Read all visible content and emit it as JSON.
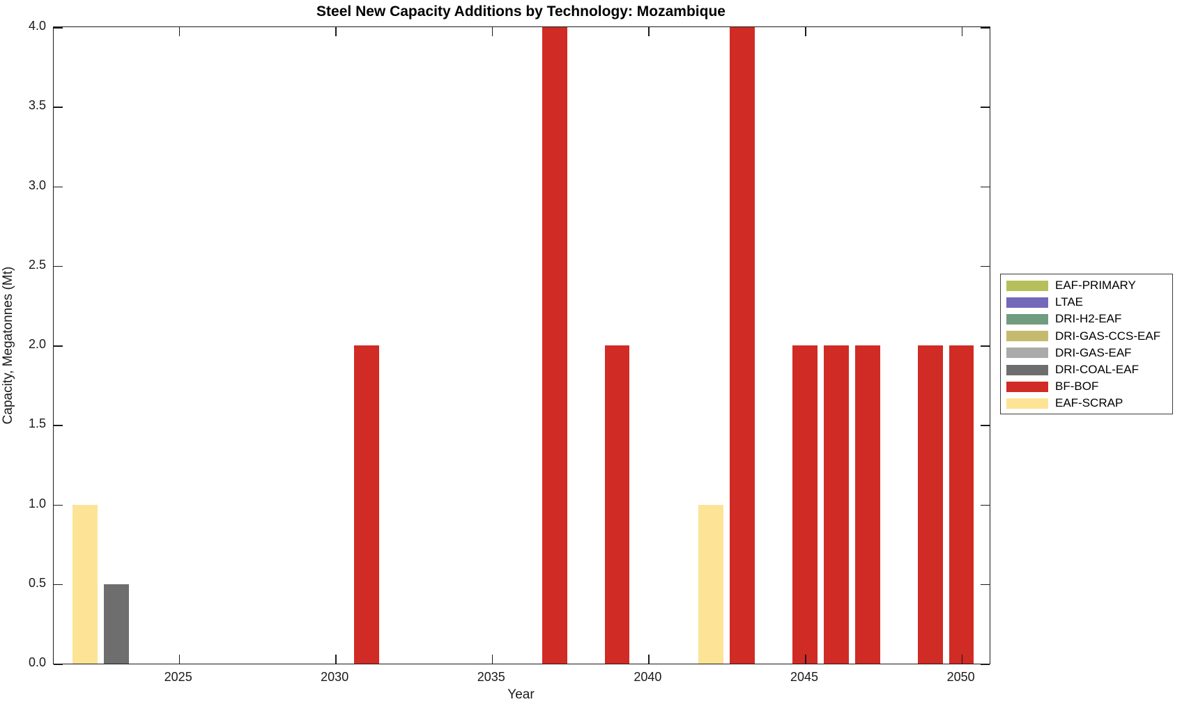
{
  "title": "Steel New Capacity Additions by Technology: Mozambique",
  "chart_data": {
    "type": "bar",
    "title": "Steel New Capacity Additions by Technology: Mozambique",
    "xlabel": "Year",
    "ylabel": "Capacity, Megatonnes (Mt)",
    "xlim": [
      2021.0,
      2050.9
    ],
    "ylim": [
      0,
      4
    ],
    "grid": false,
    "legend_position": "outside-right",
    "xticks": [
      2025,
      2030,
      2035,
      2040,
      2045,
      2050
    ],
    "yticks": [
      0,
      0.5,
      1.0,
      1.5,
      2.0,
      2.5,
      3.0,
      3.5,
      4.0
    ],
    "ytick_labels": [
      "0.0",
      "0.5",
      "1.0",
      "1.5",
      "2.0",
      "2.5",
      "3.0",
      "3.5",
      "4.0"
    ],
    "bar_width_years": 0.8,
    "legend": [
      {
        "name": "EAF-PRIMARY",
        "color": "#b5c05c"
      },
      {
        "name": "LTAE",
        "color": "#7468bb"
      },
      {
        "name": "DRI-H2-EAF",
        "color": "#709c80"
      },
      {
        "name": "DRI-GAS-CCS-EAF",
        "color": "#c5b96e"
      },
      {
        "name": "DRI-GAS-EAF",
        "color": "#aaaaaa"
      },
      {
        "name": "DRI-COAL-EAF",
        "color": "#6e6e6e"
      },
      {
        "name": "BF-BOF",
        "color": "#d02b24"
      },
      {
        "name": "EAF-SCRAP",
        "color": "#fde395"
      }
    ],
    "bars": [
      {
        "year": 2022,
        "tech": "EAF-SCRAP",
        "value": 1.0
      },
      {
        "year": 2023,
        "tech": "DRI-COAL-EAF",
        "value": 0.5
      },
      {
        "year": 2031,
        "tech": "BF-BOF",
        "value": 2.0
      },
      {
        "year": 2037,
        "tech": "BF-BOF",
        "value": 4.0
      },
      {
        "year": 2039,
        "tech": "BF-BOF",
        "value": 2.0
      },
      {
        "year": 2042,
        "tech": "EAF-SCRAP",
        "value": 1.0
      },
      {
        "year": 2043,
        "tech": "BF-BOF",
        "value": 4.0
      },
      {
        "year": 2045,
        "tech": "BF-BOF",
        "value": 2.0
      },
      {
        "year": 2046,
        "tech": "BF-BOF",
        "value": 2.0
      },
      {
        "year": 2047,
        "tech": "BF-BOF",
        "value": 2.0
      },
      {
        "year": 2049,
        "tech": "BF-BOF",
        "value": 2.0
      },
      {
        "year": 2050,
        "tech": "BF-BOF",
        "value": 2.0
      }
    ]
  }
}
